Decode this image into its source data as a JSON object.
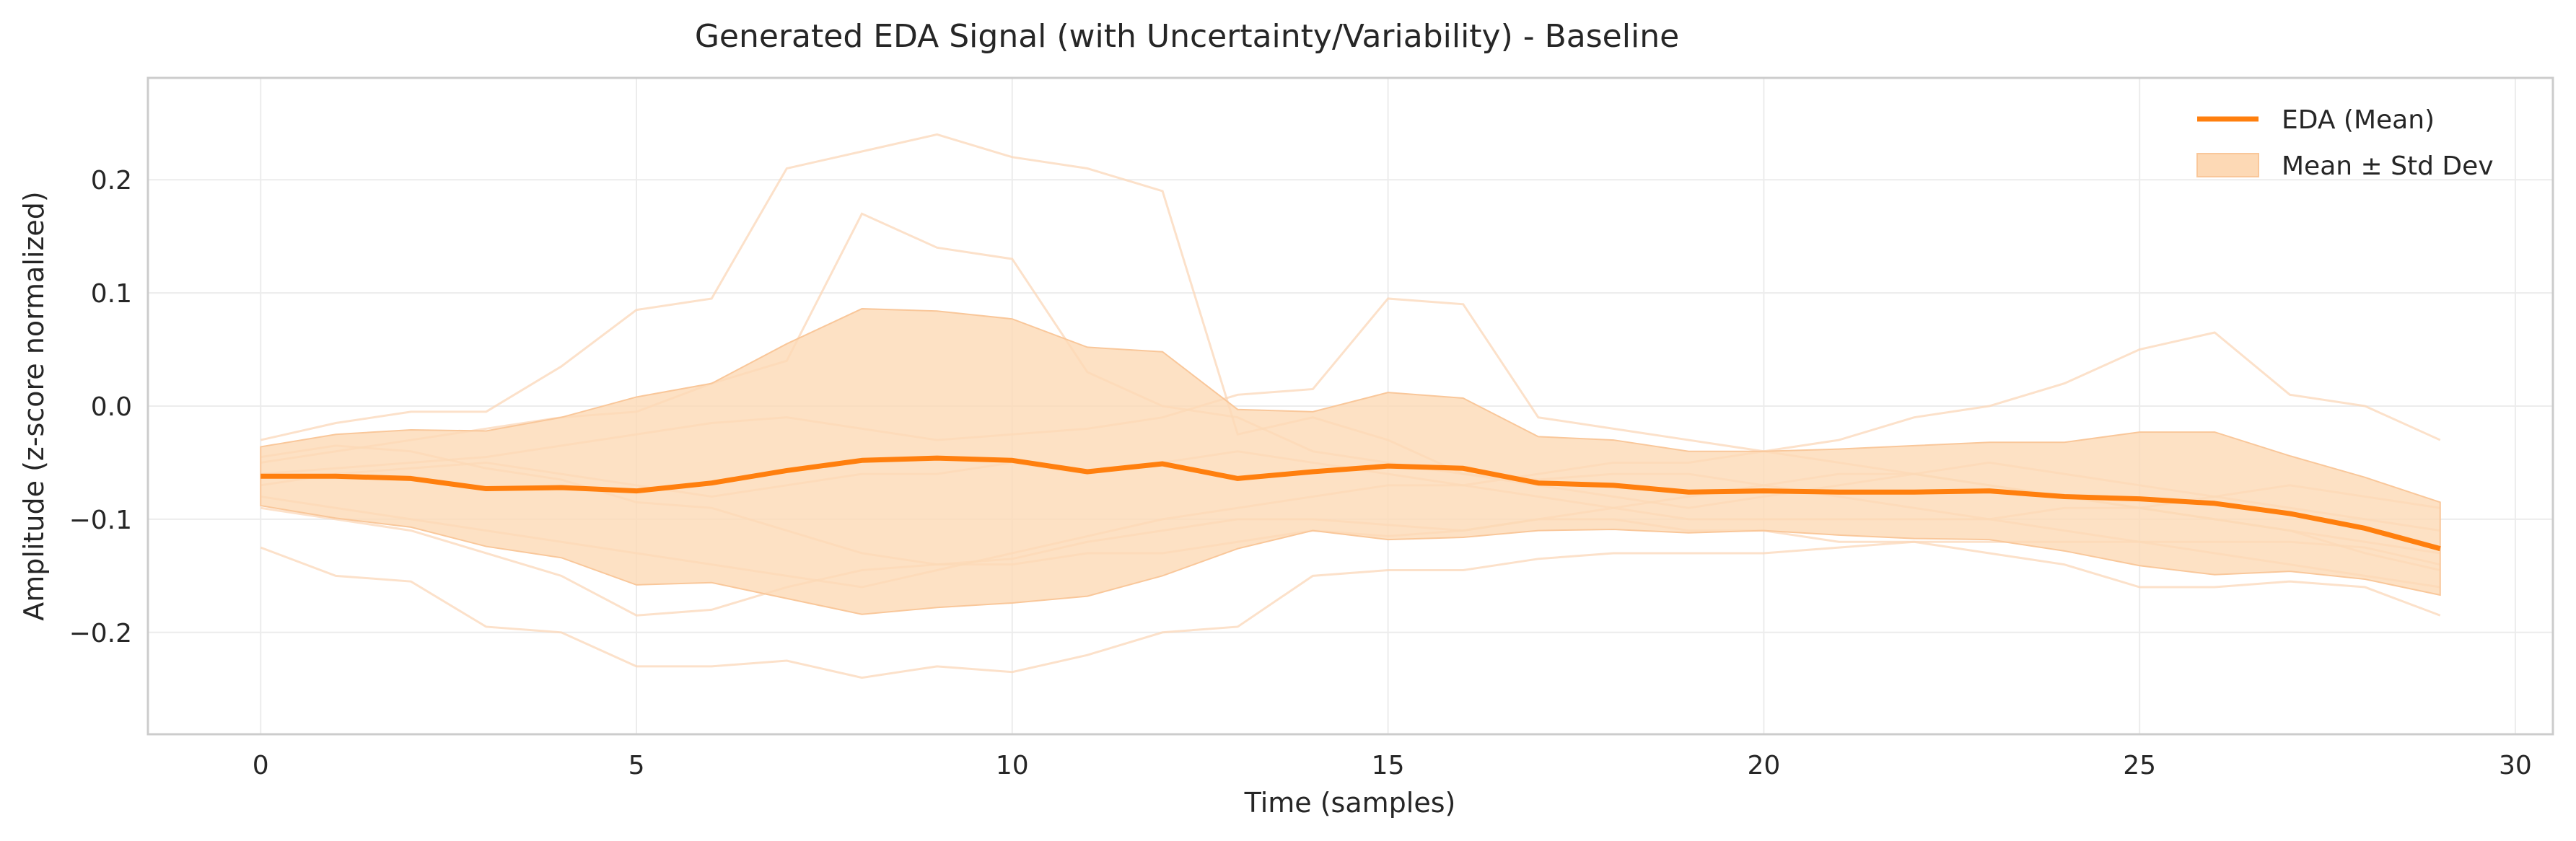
{
  "chart_data": {
    "type": "line",
    "title": "Generated EDA Signal (with Uncertainty/Variability) - Baseline",
    "xlabel": "Time (samples)",
    "ylabel": "Amplitude (z-score normalized)",
    "xlim": [
      -1.5,
      30.5
    ],
    "ylim": [
      -0.29,
      0.29
    ],
    "xticks": [
      0,
      5,
      10,
      15,
      20,
      25,
      30
    ],
    "yticks": [
      -0.2,
      -0.1,
      0.0,
      0.1,
      0.2
    ],
    "ytick_labels": [
      "−0.2",
      "−0.1",
      "0.0",
      "0.1",
      "0.2"
    ],
    "grid": true,
    "legend_position": "top-right",
    "colors": {
      "mean": "#ff7f0e",
      "band": "#fdd9b5",
      "samples": "#fbd7b8"
    },
    "x": [
      0,
      1,
      2,
      3,
      4,
      5,
      6,
      7,
      8,
      9,
      10,
      11,
      12,
      13,
      14,
      15,
      16,
      17,
      18,
      19,
      20,
      21,
      22,
      23,
      24,
      25,
      26,
      27,
      28,
      29
    ],
    "mean": {
      "name": "EDA (Mean)",
      "values": [
        -0.062,
        -0.062,
        -0.064,
        -0.073,
        -0.072,
        -0.075,
        -0.068,
        -0.057,
        -0.048,
        -0.046,
        -0.048,
        -0.058,
        -0.051,
        -0.064,
        -0.058,
        -0.053,
        -0.055,
        -0.068,
        -0.07,
        -0.076,
        -0.075,
        -0.076,
        -0.076,
        -0.075,
        -0.08,
        -0.082,
        -0.086,
        -0.095,
        -0.108,
        -0.126
      ]
    },
    "band": {
      "name": "Mean ± Std Dev",
      "upper": [
        -0.036,
        -0.025,
        -0.021,
        -0.022,
        -0.01,
        0.008,
        0.02,
        0.055,
        0.086,
        0.084,
        0.077,
        0.052,
        0.048,
        -0.003,
        -0.005,
        0.012,
        0.007,
        -0.027,
        -0.03,
        -0.04,
        -0.04,
        -0.038,
        -0.035,
        -0.032,
        -0.032,
        -0.023,
        -0.023,
        -0.044,
        -0.063,
        -0.085
      ],
      "lower": [
        -0.088,
        -0.099,
        -0.107,
        -0.124,
        -0.134,
        -0.158,
        -0.156,
        -0.17,
        -0.184,
        -0.178,
        -0.174,
        -0.168,
        -0.15,
        -0.126,
        -0.11,
        -0.118,
        -0.116,
        -0.11,
        -0.109,
        -0.112,
        -0.11,
        -0.114,
        -0.117,
        -0.118,
        -0.128,
        -0.141,
        -0.149,
        -0.146,
        -0.153,
        -0.167
      ]
    },
    "samples": [
      [
        -0.03,
        -0.015,
        -0.005,
        -0.005,
        0.035,
        0.085,
        0.095,
        0.21,
        0.225,
        0.24,
        0.22,
        0.21,
        0.19,
        -0.025,
        -0.01,
        -0.03,
        -0.06,
        -0.065,
        -0.06,
        -0.06,
        -0.07,
        -0.08,
        -0.09,
        -0.1,
        -0.11,
        -0.12,
        -0.13,
        -0.14,
        -0.15,
        -0.16
      ],
      [
        -0.05,
        -0.04,
        -0.03,
        -0.02,
        -0.01,
        -0.005,
        0.02,
        0.04,
        0.17,
        0.14,
        0.13,
        0.03,
        0.0,
        -0.01,
        -0.04,
        -0.05,
        -0.06,
        -0.07,
        -0.08,
        -0.09,
        -0.08,
        -0.07,
        -0.06,
        -0.05,
        -0.06,
        -0.07,
        -0.08,
        -0.09,
        -0.1,
        -0.11
      ],
      [
        -0.06,
        -0.055,
        -0.05,
        -0.045,
        -0.035,
        -0.025,
        -0.015,
        -0.01,
        -0.02,
        -0.03,
        -0.025,
        -0.02,
        -0.01,
        0.01,
        0.015,
        0.095,
        0.09,
        -0.01,
        -0.02,
        -0.03,
        -0.04,
        -0.05,
        -0.06,
        -0.07,
        -0.08,
        -0.09,
        -0.1,
        -0.11,
        -0.12,
        -0.13
      ],
      [
        -0.07,
        -0.06,
        -0.055,
        -0.05,
        -0.06,
        -0.07,
        -0.08,
        -0.07,
        -0.06,
        -0.06,
        -0.05,
        -0.06,
        -0.05,
        -0.04,
        -0.05,
        -0.06,
        -0.07,
        -0.06,
        -0.05,
        -0.05,
        -0.04,
        -0.03,
        -0.01,
        0.0,
        0.02,
        0.05,
        0.065,
        0.01,
        0.0,
        -0.03
      ],
      [
        -0.08,
        -0.09,
        -0.1,
        -0.11,
        -0.12,
        -0.13,
        -0.14,
        -0.15,
        -0.16,
        -0.145,
        -0.13,
        -0.115,
        -0.1,
        -0.09,
        -0.08,
        -0.07,
        -0.07,
        -0.08,
        -0.09,
        -0.1,
        -0.1,
        -0.1,
        -0.1,
        -0.1,
        -0.09,
        -0.09,
        -0.08,
        -0.07,
        -0.08,
        -0.09
      ],
      [
        -0.09,
        -0.1,
        -0.11,
        -0.13,
        -0.15,
        -0.185,
        -0.18,
        -0.16,
        -0.145,
        -0.14,
        -0.135,
        -0.12,
        -0.11,
        -0.1,
        -0.1,
        -0.105,
        -0.11,
        -0.1,
        -0.1,
        -0.11,
        -0.11,
        -0.12,
        -0.12,
        -0.13,
        -0.14,
        -0.16,
        -0.16,
        -0.155,
        -0.16,
        -0.185
      ],
      [
        -0.125,
        -0.15,
        -0.155,
        -0.195,
        -0.2,
        -0.23,
        -0.23,
        -0.225,
        -0.24,
        -0.23,
        -0.235,
        -0.22,
        -0.2,
        -0.195,
        -0.15,
        -0.145,
        -0.145,
        -0.135,
        -0.13,
        -0.13,
        -0.13,
        -0.125,
        -0.12,
        -0.12,
        -0.12,
        -0.12,
        -0.12,
        -0.12,
        -0.125,
        -0.14
      ],
      [
        -0.045,
        -0.035,
        -0.04,
        -0.055,
        -0.065,
        -0.085,
        -0.09,
        -0.11,
        -0.13,
        -0.14,
        -0.14,
        -0.13,
        -0.13,
        -0.12,
        -0.11,
        -0.115,
        -0.11,
        -0.1,
        -0.09,
        -0.08,
        -0.07,
        -0.06,
        -0.06,
        -0.07,
        -0.08,
        -0.09,
        -0.1,
        -0.11,
        -0.13,
        -0.145
      ]
    ]
  }
}
